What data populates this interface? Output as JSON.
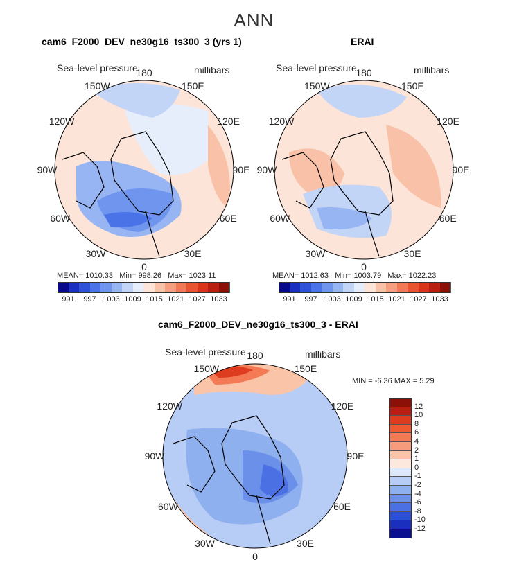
{
  "title": "ANN",
  "panel1": {
    "title": "cam6_F2000_DEV_ne30g16_ts300_3 (yrs 1)",
    "variable": "Sea-level pressure",
    "units": "millibars",
    "mean_label": "MEAN=",
    "mean": "1010.33",
    "min_label": "Min=",
    "min": "998.26",
    "max_label": "Max=",
    "max": "1023.11"
  },
  "panel2": {
    "title": "ERAI",
    "variable": "Sea-level pressure",
    "units": "millibars",
    "mean_label": "MEAN=",
    "mean": "1012.63",
    "min_label": "Min=",
    "min": "1003.79",
    "max_label": "Max=",
    "max": "1022.23"
  },
  "panel3": {
    "title": "cam6_F2000_DEV_ne30g16_ts300_3 - ERAI",
    "variable": "Sea-level pressure",
    "units": "millibars",
    "min_label": "MIN =",
    "min": "-6.36",
    "max_label": "MAX =",
    "max": "5.29"
  },
  "lon_labels": [
    "180",
    "150E",
    "120E",
    "90E",
    "60E",
    "30E",
    "0",
    "30W",
    "60W",
    "90W",
    "120W",
    "150W"
  ],
  "abs_colorbar": {
    "ticks": [
      "991",
      "997",
      "1003",
      "1009",
      "1015",
      "1021",
      "1027",
      "1033"
    ],
    "colors": [
      "#08088a",
      "#1a2fbf",
      "#2f52d9",
      "#4a73e8",
      "#6f95ef",
      "#97b5f3",
      "#c2d5f7",
      "#e6eefb",
      "#fde4d8",
      "#f9c2a8",
      "#f59f7e",
      "#ef7a55",
      "#e8542f",
      "#d9351b",
      "#b81f10",
      "#8c0f08"
    ]
  },
  "diff_colorbar": {
    "ticks": [
      "12",
      "10",
      "8",
      "6",
      "4",
      "2",
      "1",
      "0",
      "-1",
      "-2",
      "-4",
      "-6",
      "-8",
      "-10",
      "-12"
    ],
    "colors": [
      "#8c0f08",
      "#b81f10",
      "#dd3d1e",
      "#ef5a30",
      "#f47a55",
      "#f69c7c",
      "#fac4a8",
      "#fde8dd",
      "#dde8fb",
      "#b8cdf5",
      "#8fb0ef",
      "#6b90ea",
      "#4a70e4",
      "#2e4fd6",
      "#1b2fbf",
      "#0a0f8f"
    ]
  }
}
